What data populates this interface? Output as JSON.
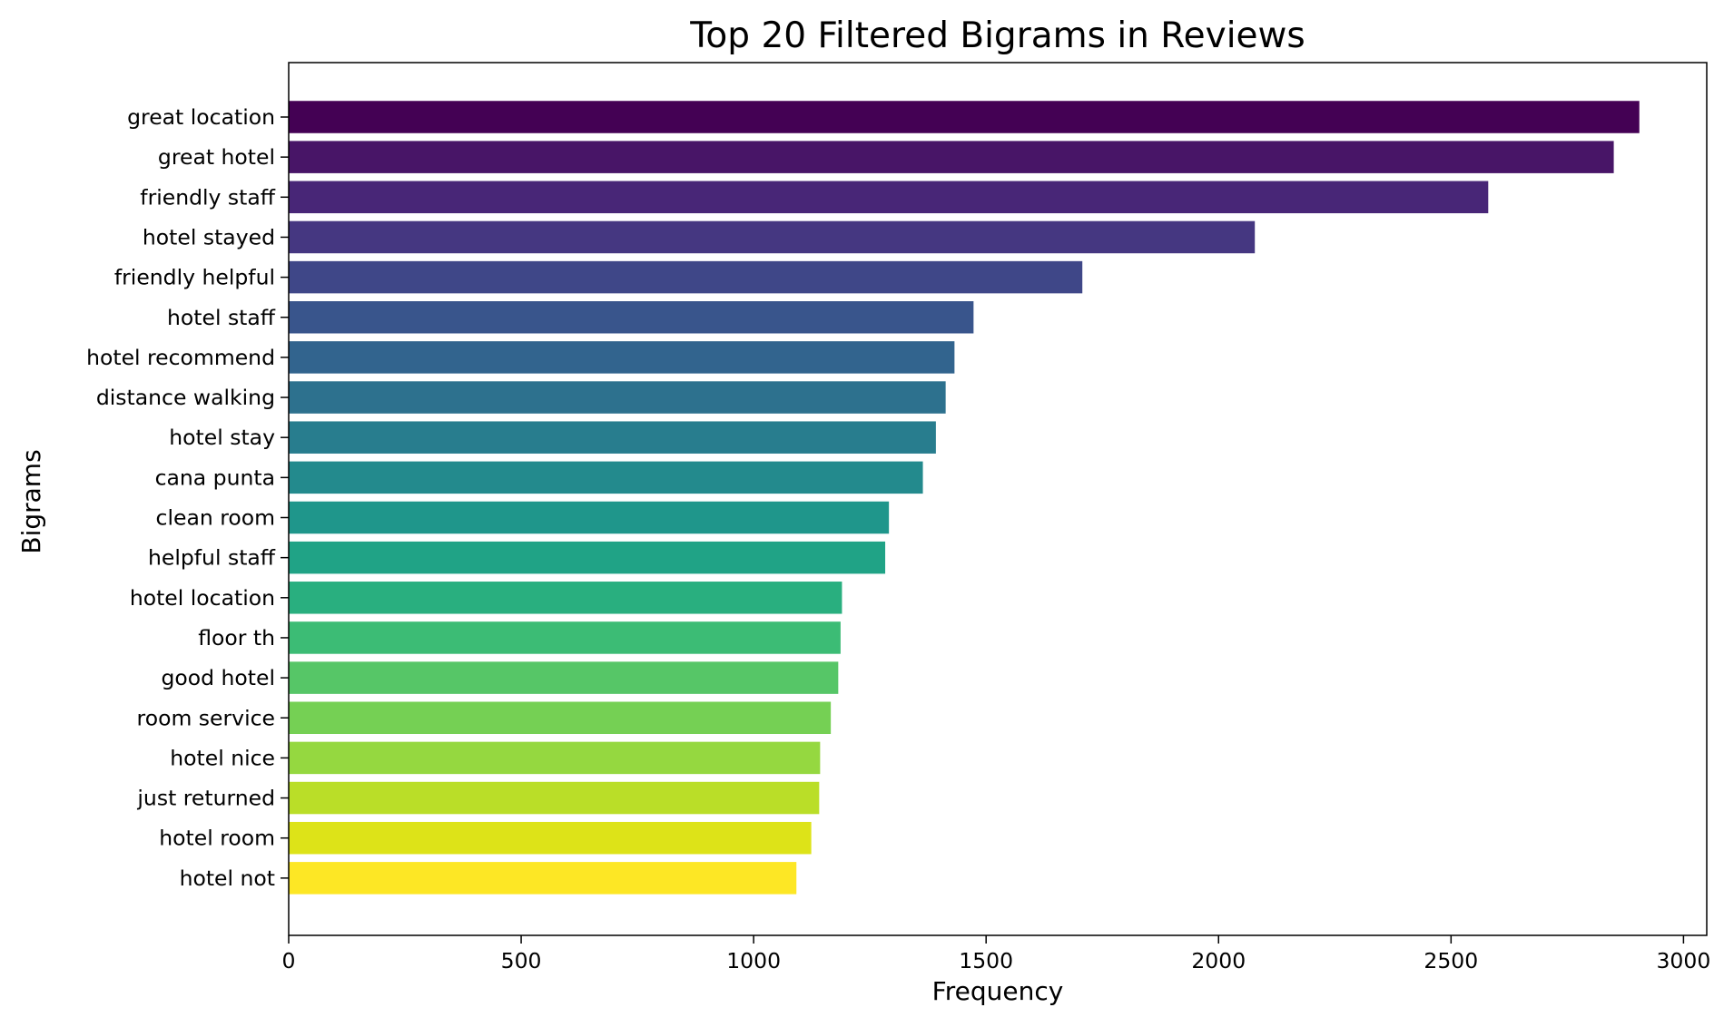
{
  "chart_data": {
    "type": "bar",
    "orientation": "horizontal",
    "title": "Top 20 Filtered Bigrams in Reviews",
    "xlabel": "Frequency",
    "ylabel": "Bigrams",
    "xlim": [
      0,
      3050
    ],
    "xticks": [
      0,
      500,
      1000,
      1500,
      2000,
      2500,
      3000
    ],
    "xtick_labels": [
      "0",
      "500",
      "1000",
      "1500",
      "2000",
      "2500",
      "3000"
    ],
    "grid": false,
    "colormap": "viridis",
    "categories": [
      "great location",
      "great hotel",
      "friendly staff",
      "hotel stayed",
      "friendly helpful",
      "hotel staff",
      "hotel recommend",
      "distance walking",
      "hotel stay",
      "cana punta",
      "clean room",
      "helpful staff",
      "hotel location",
      "floor th",
      "good hotel",
      "room service",
      "hotel nice",
      "just returned",
      "hotel room",
      "hotel not"
    ],
    "values": [
      2905,
      2850,
      2580,
      2078,
      1707,
      1473,
      1432,
      1413,
      1392,
      1364,
      1291,
      1283,
      1190,
      1187,
      1182,
      1166,
      1143,
      1141,
      1124,
      1092
    ],
    "colors": [
      "#440154",
      "#481567",
      "#482677",
      "#453781",
      "#3f4788",
      "#39558c",
      "#32648e",
      "#2d718e",
      "#287d8e",
      "#238a8d",
      "#1f968b",
      "#20a386",
      "#29af7f",
      "#3cbc75",
      "#56c667",
      "#75d054",
      "#95d840",
      "#bade28",
      "#dde318",
      "#fde725"
    ]
  }
}
